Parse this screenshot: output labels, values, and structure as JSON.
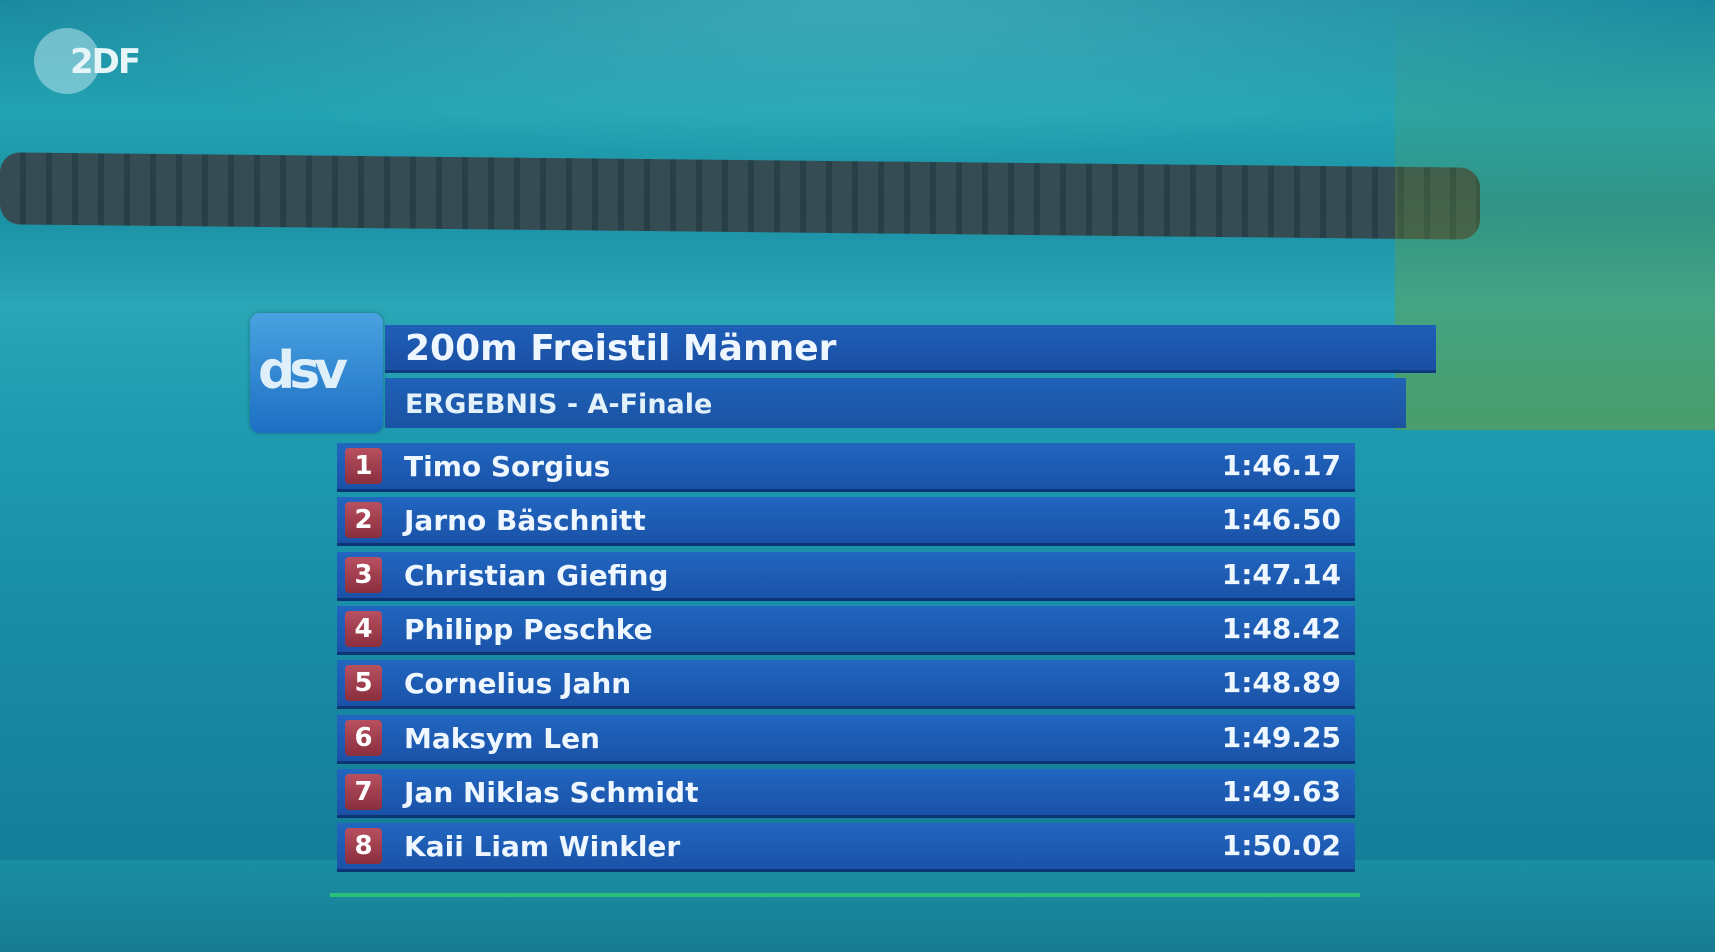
{
  "broadcaster_logo": "2DF",
  "federation_logo": "dsv",
  "title": "200m Freistil Männer",
  "subtitle": "ERGEBNIS - A-Finale",
  "results": [
    {
      "rank": "1",
      "name": "Timo Sorgius",
      "time": "1:46.17"
    },
    {
      "rank": "2",
      "name": "Jarno Bäschnitt",
      "time": "1:46.50"
    },
    {
      "rank": "3",
      "name": "Christian Giefing",
      "time": "1:47.14"
    },
    {
      "rank": "4",
      "name": "Philipp Peschke",
      "time": "1:48.42"
    },
    {
      "rank": "5",
      "name": "Cornelius Jahn",
      "time": "1:48.89"
    },
    {
      "rank": "6",
      "name": "Maksym Len",
      "time": "1:49.25"
    },
    {
      "rank": "7",
      "name": "Jan Niklas Schmidt",
      "time": "1:49.63"
    },
    {
      "rank": "8",
      "name": "Kaii Liam Winkler",
      "time": "1:50.02"
    }
  ],
  "colors": {
    "bar": "#1f5fb8",
    "rank_badge": "#a3404f"
  }
}
